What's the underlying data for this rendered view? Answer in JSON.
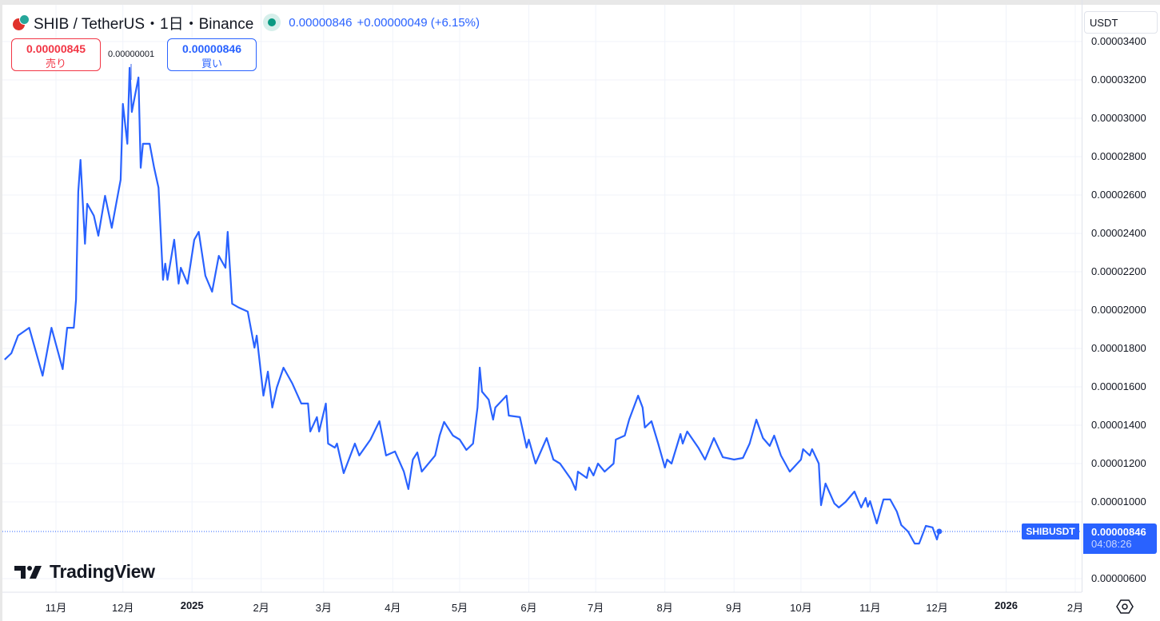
{
  "header": {
    "title": "SHIB / TetherUS・1日・Binance",
    "price": "0.00000846",
    "change": "+0.00000049 (+6.15%)",
    "status_color": "#089981"
  },
  "trade": {
    "sell_price": "0.00000845",
    "sell_label": "売り",
    "spread": "0.00000001",
    "buy_price": "0.00000846",
    "buy_label": "買い"
  },
  "currency_selector": "USDT",
  "last_price": {
    "symbol": "SHIBUSDT",
    "price": "0.00000846",
    "countdown": "04:08:26"
  },
  "logo": "TradingView",
  "icons": {
    "settings": "hexagon-gear-icon",
    "symbol": "shib-logo-icon",
    "status": "market-open-dot-icon"
  },
  "chart_data": {
    "type": "line",
    "color": "#2962ff",
    "grid": true,
    "ylim": [
      6e-06,
      3.4e-05
    ],
    "yticks": [
      "0.00003400",
      "0.00003200",
      "0.00003000",
      "0.00002800",
      "0.00002600",
      "0.00002400",
      "0.00002200",
      "0.00002000",
      "0.00001800",
      "0.00001600",
      "0.00001400",
      "0.00001200",
      "0.00001000",
      "0.00000600"
    ],
    "xticks": [
      {
        "label": "11月",
        "date": "2024-11-01"
      },
      {
        "label": "12月",
        "date": "2024-12-01"
      },
      {
        "label": "2025",
        "date": "2025-01-01",
        "bold": true
      },
      {
        "label": "2月",
        "date": "2025-02-01"
      },
      {
        "label": "3月",
        "date": "2025-03-01"
      },
      {
        "label": "4月",
        "date": "2025-04-01"
      },
      {
        "label": "5月",
        "date": "2025-05-01"
      },
      {
        "label": "6月",
        "date": "2025-06-01"
      },
      {
        "label": "7月",
        "date": "2025-07-01"
      },
      {
        "label": "8月",
        "date": "2025-08-01"
      },
      {
        "label": "9月",
        "date": "2025-09-01"
      },
      {
        "label": "10月",
        "date": "2025-10-01"
      },
      {
        "label": "11月",
        "date": "2025-11-01"
      },
      {
        "label": "12月",
        "date": "2025-12-01"
      },
      {
        "label": "2026",
        "date": "2026-01-01",
        "bold": true
      },
      {
        "label": "2月",
        "date": "2026-02-01"
      }
    ],
    "last_value": 8.46e-06,
    "points": [
      [
        "2024-10-09",
        1.742e-05
      ],
      [
        "2024-10-12",
        1.775e-05
      ],
      [
        "2024-10-15",
        1.867e-05
      ],
      [
        "2024-10-20",
        1.908e-05
      ],
      [
        "2024-10-23",
        1.783e-05
      ],
      [
        "2024-10-26",
        1.658e-05
      ],
      [
        "2024-10-30",
        1.908e-05
      ],
      [
        "2024-11-04",
        1.692e-05
      ],
      [
        "2024-11-06",
        1.908e-05
      ],
      [
        "2024-11-09",
        1.908e-05
      ],
      [
        "2024-11-10",
        2.054e-05
      ],
      [
        "2024-11-11",
        2.617e-05
      ],
      [
        "2024-11-12",
        2.783e-05
      ],
      [
        "2024-11-14",
        2.346e-05
      ],
      [
        "2024-11-15",
        2.554e-05
      ],
      [
        "2024-11-18",
        2.492e-05
      ],
      [
        "2024-11-20",
        2.388e-05
      ],
      [
        "2024-11-23",
        2.596e-05
      ],
      [
        "2024-11-26",
        2.429e-05
      ],
      [
        "2024-11-29",
        2.617e-05
      ],
      [
        "2024-11-30",
        2.679e-05
      ],
      [
        "2024-12-01",
        3.075e-05
      ],
      [
        "2024-12-03",
        2.867e-05
      ],
      [
        "2024-12-04",
        3.263e-05
      ],
      [
        "2024-12-05",
        3.033e-05
      ],
      [
        "2024-12-08",
        3.213e-05
      ],
      [
        "2024-12-09",
        2.742e-05
      ],
      [
        "2024-12-10",
        2.867e-05
      ],
      [
        "2024-12-13",
        2.867e-05
      ],
      [
        "2024-12-15",
        2.742e-05
      ],
      [
        "2024-12-17",
        2.638e-05
      ],
      [
        "2024-12-19",
        2.158e-05
      ],
      [
        "2024-12-20",
        2.242e-05
      ],
      [
        "2024-12-21",
        2.158e-05
      ],
      [
        "2024-12-24",
        2.367e-05
      ],
      [
        "2024-12-26",
        2.138e-05
      ],
      [
        "2024-12-27",
        2.221e-05
      ],
      [
        "2024-12-30",
        2.138e-05
      ],
      [
        "2025-01-02",
        2.367e-05
      ],
      [
        "2025-01-04",
        2.408e-05
      ],
      [
        "2025-01-07",
        2.179e-05
      ],
      [
        "2025-01-10",
        2.096e-05
      ],
      [
        "2025-01-13",
        2.283e-05
      ],
      [
        "2025-01-16",
        2.221e-05
      ],
      [
        "2025-01-17",
        2.408e-05
      ],
      [
        "2025-01-19",
        2.033e-05
      ],
      [
        "2025-01-22",
        2.013e-05
      ],
      [
        "2025-01-26",
        1.992e-05
      ],
      [
        "2025-01-29",
        1.804e-05
      ],
      [
        "2025-01-30",
        1.867e-05
      ],
      [
        "2025-02-02",
        1.554e-05
      ],
      [
        "2025-02-04",
        1.679e-05
      ],
      [
        "2025-02-06",
        1.492e-05
      ],
      [
        "2025-02-08",
        1.596e-05
      ],
      [
        "2025-02-11",
        1.7e-05
      ],
      [
        "2025-02-15",
        1.617e-05
      ],
      [
        "2025-02-19",
        1.513e-05
      ],
      [
        "2025-02-22",
        1.513e-05
      ],
      [
        "2025-02-23",
        1.367e-05
      ],
      [
        "2025-02-26",
        1.442e-05
      ],
      [
        "2025-02-27",
        1.367e-05
      ],
      [
        "2025-03-02",
        1.513e-05
      ],
      [
        "2025-03-03",
        1.304e-05
      ],
      [
        "2025-03-06",
        1.283e-05
      ],
      [
        "2025-03-07",
        1.304e-05
      ],
      [
        "2025-03-10",
        1.15e-05
      ],
      [
        "2025-03-15",
        1.304e-05
      ],
      [
        "2025-03-17",
        1.242e-05
      ],
      [
        "2025-03-22",
        1.325e-05
      ],
      [
        "2025-03-26",
        1.421e-05
      ],
      [
        "2025-03-29",
        1.242e-05
      ],
      [
        "2025-04-02",
        1.263e-05
      ],
      [
        "2025-04-06",
        1.158e-05
      ],
      [
        "2025-04-08",
        1.067e-05
      ],
      [
        "2025-04-10",
        1.221e-05
      ],
      [
        "2025-04-12",
        1.258e-05
      ],
      [
        "2025-04-14",
        1.158e-05
      ],
      [
        "2025-04-20",
        1.242e-05
      ],
      [
        "2025-04-22",
        1.346e-05
      ],
      [
        "2025-04-24",
        1.417e-05
      ],
      [
        "2025-04-28",
        1.346e-05
      ],
      [
        "2025-05-01",
        1.325e-05
      ],
      [
        "2025-05-04",
        1.271e-05
      ],
      [
        "2025-05-07",
        1.304e-05
      ],
      [
        "2025-05-09",
        1.492e-05
      ],
      [
        "2025-05-10",
        1.7e-05
      ],
      [
        "2025-05-11",
        1.575e-05
      ],
      [
        "2025-05-14",
        1.533e-05
      ],
      [
        "2025-05-16",
        1.429e-05
      ],
      [
        "2025-05-17",
        1.492e-05
      ],
      [
        "2025-05-22",
        1.554e-05
      ],
      [
        "2025-05-23",
        1.45e-05
      ],
      [
        "2025-05-28",
        1.442e-05
      ],
      [
        "2025-05-31",
        1.283e-05
      ],
      [
        "2025-06-01",
        1.325e-05
      ],
      [
        "2025-06-04",
        1.2e-05
      ],
      [
        "2025-06-09",
        1.333e-05
      ],
      [
        "2025-06-12",
        1.221e-05
      ],
      [
        "2025-06-15",
        1.2e-05
      ],
      [
        "2025-06-20",
        1.117e-05
      ],
      [
        "2025-06-22",
        1.063e-05
      ],
      [
        "2025-06-23",
        1.158e-05
      ],
      [
        "2025-06-27",
        1.125e-05
      ],
      [
        "2025-06-28",
        1.179e-05
      ],
      [
        "2025-06-30",
        1.138e-05
      ],
      [
        "2025-07-02",
        1.2e-05
      ],
      [
        "2025-07-05",
        1.158e-05
      ],
      [
        "2025-07-09",
        1.2e-05
      ],
      [
        "2025-07-10",
        1.325e-05
      ],
      [
        "2025-07-14",
        1.346e-05
      ],
      [
        "2025-07-16",
        1.429e-05
      ],
      [
        "2025-07-20",
        1.554e-05
      ],
      [
        "2025-07-22",
        1.492e-05
      ],
      [
        "2025-07-23",
        1.388e-05
      ],
      [
        "2025-07-26",
        1.421e-05
      ],
      [
        "2025-07-29",
        1.304e-05
      ],
      [
        "2025-08-01",
        1.179e-05
      ],
      [
        "2025-08-02",
        1.221e-05
      ],
      [
        "2025-08-04",
        1.2e-05
      ],
      [
        "2025-08-08",
        1.354e-05
      ],
      [
        "2025-08-09",
        1.304e-05
      ],
      [
        "2025-08-11",
        1.367e-05
      ],
      [
        "2025-08-16",
        1.283e-05
      ],
      [
        "2025-08-19",
        1.221e-05
      ],
      [
        "2025-08-23",
        1.333e-05
      ],
      [
        "2025-08-27",
        1.233e-05
      ],
      [
        "2025-09-01",
        1.221e-05
      ],
      [
        "2025-09-05",
        1.229e-05
      ],
      [
        "2025-09-08",
        1.304e-05
      ],
      [
        "2025-09-11",
        1.429e-05
      ],
      [
        "2025-09-14",
        1.333e-05
      ],
      [
        "2025-09-17",
        1.292e-05
      ],
      [
        "2025-09-19",
        1.346e-05
      ],
      [
        "2025-09-22",
        1.242e-05
      ],
      [
        "2025-09-26",
        1.158e-05
      ],
      [
        "2025-10-01",
        1.221e-05
      ],
      [
        "2025-10-02",
        1.275e-05
      ],
      [
        "2025-10-05",
        1.242e-05
      ],
      [
        "2025-10-06",
        1.275e-05
      ],
      [
        "2025-10-09",
        1.2e-05
      ],
      [
        "2025-10-10",
        9.83e-06
      ],
      [
        "2025-10-12",
        1.096e-05
      ],
      [
        "2025-10-16",
        9.92e-06
      ],
      [
        "2025-10-18",
        9.71e-06
      ],
      [
        "2025-10-21",
        1e-05
      ],
      [
        "2025-10-25",
        1.054e-05
      ],
      [
        "2025-10-28",
        9.71e-06
      ],
      [
        "2025-10-30",
        1.021e-05
      ],
      [
        "2025-10-31",
        9.75e-06
      ],
      [
        "2025-11-01",
        1.004e-05
      ],
      [
        "2025-11-04",
        8.88e-06
      ],
      [
        "2025-11-07",
        1.013e-05
      ],
      [
        "2025-11-10",
        1.013e-05
      ],
      [
        "2025-11-13",
        9.5e-06
      ],
      [
        "2025-11-15",
        8.79e-06
      ],
      [
        "2025-11-18",
        8.46e-06
      ],
      [
        "2025-11-21",
        7.83e-06
      ],
      [
        "2025-11-23",
        7.83e-06
      ],
      [
        "2025-11-26",
        8.75e-06
      ],
      [
        "2025-11-29",
        8.67e-06
      ],
      [
        "2025-12-01",
        8.04e-06
      ],
      [
        "2025-12-02",
        8.46e-06
      ]
    ]
  }
}
